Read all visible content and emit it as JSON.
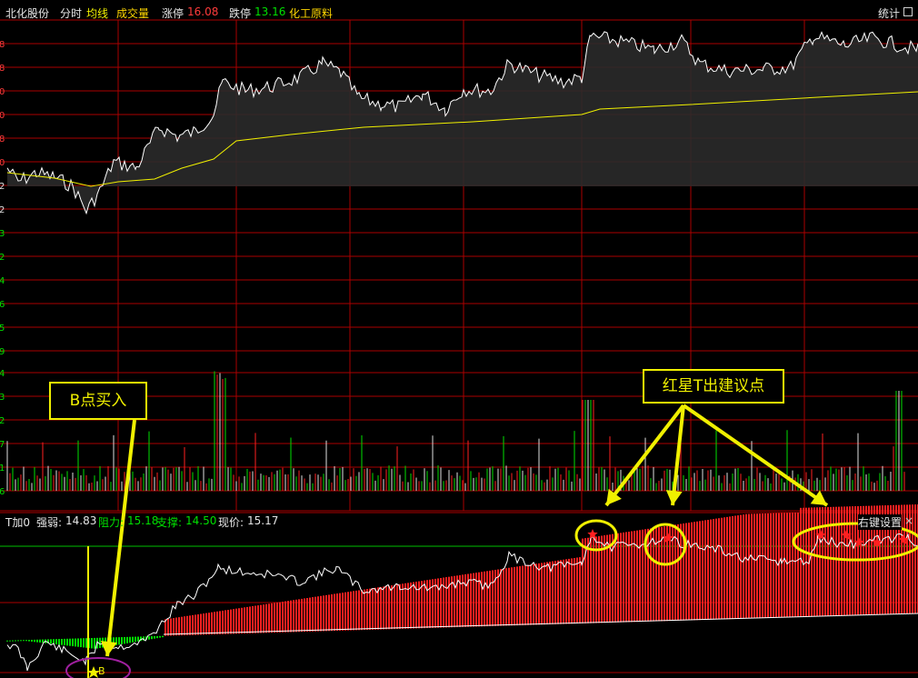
{
  "header": {
    "stock_name": "北化股份",
    "tab_intraday": "分时",
    "avg_line_label": "均线",
    "volume_label": "成交量",
    "limit_up_label": "涨停",
    "limit_up_value": "16.08",
    "limit_down_label": "跌停",
    "limit_down_value": "13.16",
    "sector": "化工原料",
    "stats_label": "统计"
  },
  "price_axis_ticks": [
    "8",
    "8",
    "0",
    "0",
    "8",
    "0",
    "2",
    "2",
    "3",
    "2",
    "4",
    "6",
    "5",
    "9",
    "4",
    "3",
    "2",
    "7",
    "1",
    "6"
  ],
  "indicator": {
    "name": "T加0",
    "strength_label": "强弱:",
    "strength_value": "14.83",
    "resistance_label": "阻力:",
    "resistance_value": "15.18",
    "support_label": "支撑:",
    "support_value": "14.50",
    "price_label": "现价:",
    "price_value": "15.17",
    "right_click_settings": "右键设置",
    "close_symbol": "×"
  },
  "annotations": {
    "buy_callout": "B点买入",
    "sell_callout": "红星T出建议点",
    "buy_marker": "B"
  },
  "colors": {
    "up": "#ff2020",
    "down": "#00e000",
    "avg_line": "#f0f000",
    "price_line": "#ffffff",
    "grid": "#aa0000",
    "callout": "#f0f000"
  }
}
